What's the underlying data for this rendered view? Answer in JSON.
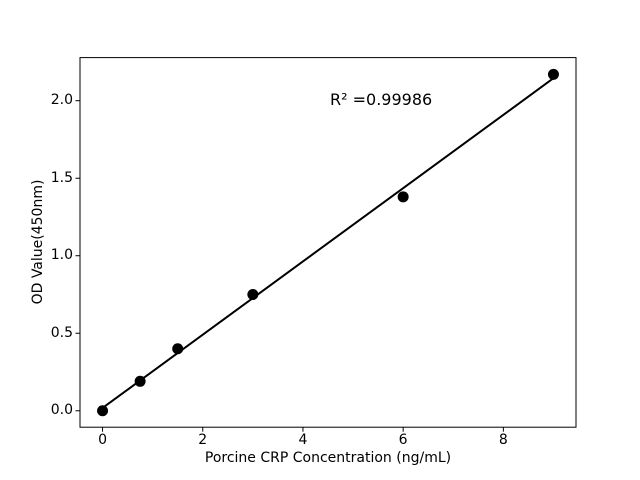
{
  "chart_data": {
    "type": "scatter",
    "title": "",
    "xlabel": "Porcine CRP Concentration (ng/mL)",
    "ylabel": "OD Value(450nm)",
    "annotation": "R² =0.99986",
    "x": [
      0,
      0.75,
      1.5,
      3,
      6,
      9
    ],
    "y": [
      0.0,
      0.19,
      0.4,
      0.75,
      1.38,
      2.17
    ],
    "fit_line": {
      "x1": 0,
      "y1": 0.018,
      "x2": 9,
      "y2": 2.145
    },
    "xticks": [
      0,
      2,
      4,
      6,
      8
    ],
    "xtick_labels": [
      "0",
      "2",
      "4",
      "6",
      "8"
    ],
    "yticks": [
      0.0,
      0.5,
      1.0,
      1.5,
      2.0
    ],
    "ytick_labels": [
      "0.0",
      "0.5",
      "1.0",
      "1.5",
      "2.0"
    ],
    "xlim": [
      -0.45,
      9.45
    ],
    "ylim": [
      -0.106,
      2.278
    ],
    "grid": false,
    "legend": "none",
    "colors": {
      "background": "#ffffff",
      "spine": "#000000",
      "marker": "#000000",
      "line": "#000000",
      "text": "#000000"
    }
  }
}
